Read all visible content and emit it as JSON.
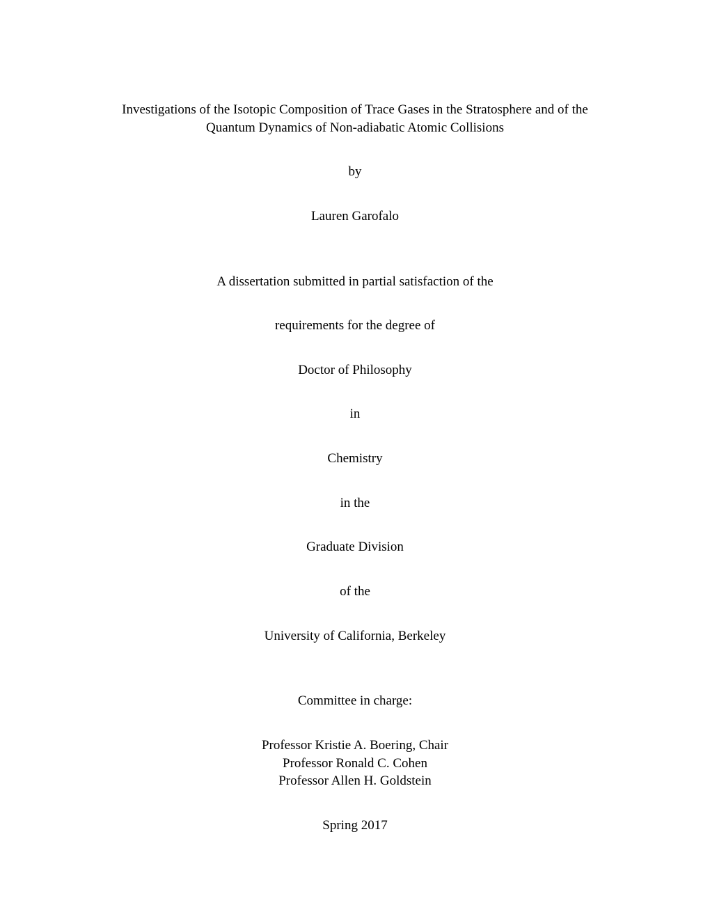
{
  "title_line1": "Investigations of the Isotopic Composition of Trace Gases in the Stratosphere and of the",
  "title_line2": "Quantum Dynamics of Non-adiabatic Atomic Collisions",
  "by": "by",
  "author": "Lauren Garofalo",
  "submitted": "A dissertation submitted in partial satisfaction of the",
  "requirements": "requirements for the degree of",
  "degree": "Doctor of Philosophy",
  "in": "in",
  "subject": "Chemistry",
  "inthe": "in the",
  "division": "Graduate Division",
  "ofthe": "of the",
  "university": "University of California, Berkeley",
  "committee_label": "Committee in charge:",
  "committee": {
    "chair": "Professor Kristie A. Boering, Chair",
    "member1": "Professor Ronald C. Cohen",
    "member2": "Professor Allen H. Goldstein"
  },
  "term": "Spring 2017"
}
